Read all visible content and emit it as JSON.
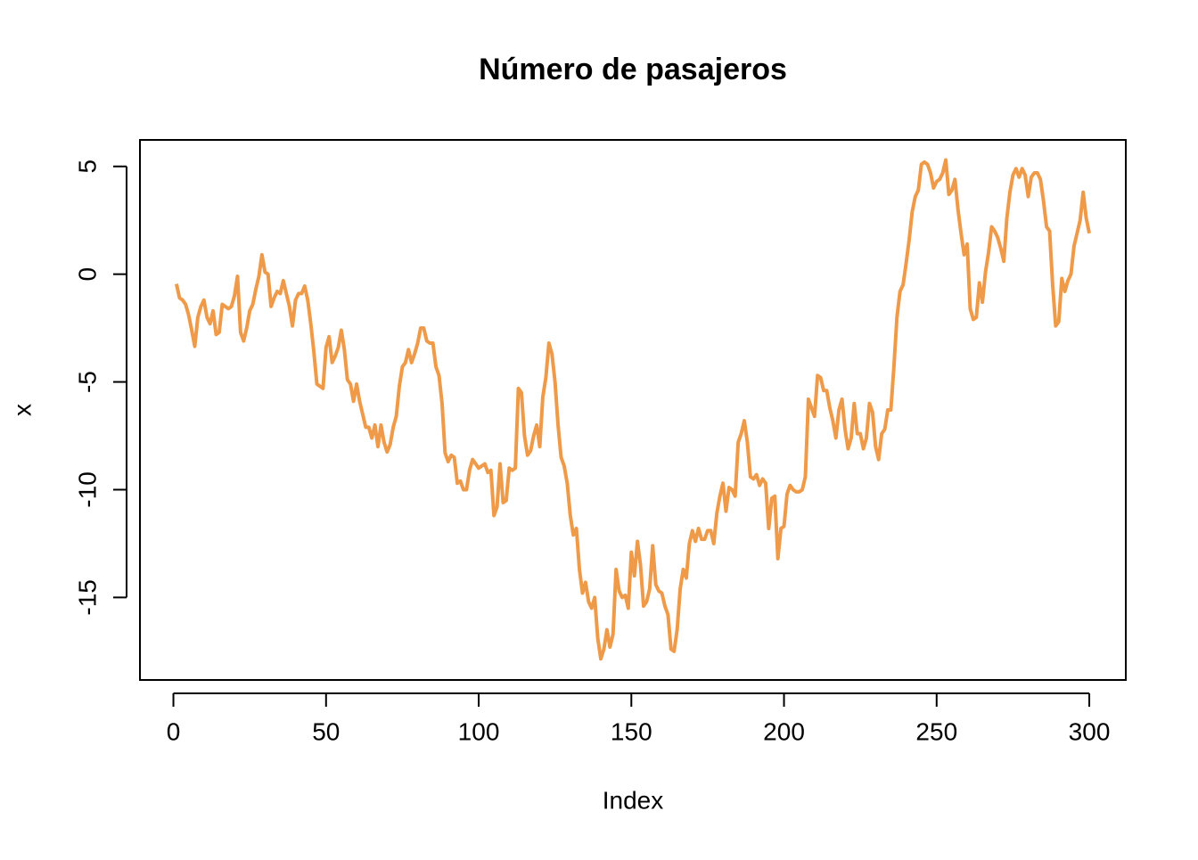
{
  "chart_data": {
    "type": "line",
    "title": "Número de pasajeros",
    "xlabel": "Index",
    "ylabel": "x",
    "color": "#EE9A49",
    "xlim": [
      -10.96,
      311.96
    ],
    "xticks": [
      0,
      50,
      100,
      150,
      200,
      250,
      300
    ],
    "ylim": [
      -18.83,
      6.23
    ],
    "yticks": [
      -15,
      -10,
      -5,
      0,
      5
    ],
    "x": [
      1,
      2,
      3,
      4,
      5,
      6,
      7,
      8,
      9,
      10,
      11,
      12,
      13,
      14,
      15,
      16,
      17,
      18,
      19,
      20,
      21,
      22,
      23,
      24,
      25,
      26,
      27,
      28,
      29,
      30,
      31,
      32,
      33,
      34,
      35,
      36,
      37,
      38,
      39,
      40,
      41,
      42,
      43,
      44,
      45,
      46,
      47,
      48,
      49,
      50,
      51,
      52,
      53,
      54,
      55,
      56,
      57,
      58,
      59,
      60,
      61,
      62,
      63,
      64,
      65,
      66,
      67,
      68,
      69,
      70,
      71,
      72,
      73,
      74,
      75,
      76,
      77,
      78,
      79,
      80,
      81,
      82,
      83,
      84,
      85,
      86,
      87,
      88,
      89,
      90,
      91,
      92,
      93,
      94,
      95,
      96,
      97,
      98,
      99,
      100,
      101,
      102,
      103,
      104,
      105,
      106,
      107,
      108,
      109,
      110,
      111,
      112,
      113,
      114,
      115,
      116,
      117,
      118,
      119,
      120,
      121,
      122,
      123,
      124,
      125,
      126,
      127,
      128,
      129,
      130,
      131,
      132,
      133,
      134,
      135,
      136,
      137,
      138,
      139,
      140,
      141,
      142,
      143,
      144,
      145,
      146,
      147,
      148,
      149,
      150,
      151,
      152,
      153,
      154,
      155,
      156,
      157,
      158,
      159,
      160,
      161,
      162,
      163,
      164,
      165,
      166,
      167,
      168,
      169,
      170,
      171,
      172,
      173,
      174,
      175,
      176,
      177,
      178,
      179,
      180,
      181,
      182,
      183,
      184,
      185,
      186,
      187,
      188,
      189,
      190,
      191,
      192,
      193,
      194,
      195,
      196,
      197,
      198,
      199,
      200,
      201,
      202,
      203,
      204,
      205,
      206,
      207,
      208,
      209,
      210,
      211,
      212,
      213,
      214,
      215,
      216,
      217,
      218,
      219,
      220,
      221,
      222,
      223,
      224,
      225,
      226,
      227,
      228,
      229,
      230,
      231,
      232,
      233,
      234,
      235,
      236,
      237,
      238,
      239,
      240,
      241,
      242,
      243,
      244,
      245,
      246,
      247,
      248,
      249,
      250,
      251,
      252,
      253,
      254,
      255,
      256,
      257,
      258,
      259,
      260,
      261,
      262,
      263,
      264,
      265,
      266,
      267,
      268,
      269,
      270,
      271,
      272,
      273,
      274,
      275,
      276,
      277,
      278,
      279,
      280,
      281,
      282,
      283,
      284,
      285,
      286,
      287,
      288,
      289,
      290,
      291,
      292,
      293,
      294,
      295,
      296,
      297,
      298,
      299,
      300
    ],
    "values": [
      -0.45,
      -1.1,
      -1.2,
      -1.4,
      -1.9,
      -2.6,
      -3.35,
      -2.0,
      -1.5,
      -1.2,
      -2.0,
      -2.3,
      -1.7,
      -2.8,
      -2.7,
      -1.4,
      -1.5,
      -1.6,
      -1.5,
      -1.0,
      -0.1,
      -2.7,
      -3.1,
      -2.5,
      -1.7,
      -1.4,
      -0.7,
      -0.1,
      0.9,
      0.1,
      0.0,
      -1.5,
      -1.1,
      -0.8,
      -0.9,
      -0.3,
      -0.9,
      -1.5,
      -2.4,
      -1.2,
      -0.9,
      -0.9,
      -0.55,
      -1.2,
      -2.3,
      -3.6,
      -5.1,
      -5.2,
      -5.3,
      -3.4,
      -2.9,
      -4.1,
      -3.8,
      -3.4,
      -2.6,
      -3.5,
      -4.9,
      -5.1,
      -5.9,
      -5.1,
      -5.9,
      -6.5,
      -7.1,
      -7.1,
      -7.6,
      -7.0,
      -8.0,
      -7.0,
      -7.8,
      -8.25,
      -7.9,
      -7.1,
      -6.6,
      -5.2,
      -4.3,
      -4.1,
      -3.5,
      -4.1,
      -3.7,
      -3.2,
      -2.5,
      -2.5,
      -3.1,
      -3.2,
      -3.2,
      -4.3,
      -4.7,
      -6.0,
      -8.3,
      -8.7,
      -8.4,
      -8.5,
      -9.7,
      -9.6,
      -10.0,
      -10.0,
      -9.1,
      -8.6,
      -8.8,
      -9.0,
      -8.9,
      -8.8,
      -9.2,
      -9.1,
      -11.2,
      -10.8,
      -8.8,
      -10.6,
      -10.5,
      -9.0,
      -9.1,
      -9.0,
      -5.3,
      -5.5,
      -7.5,
      -8.4,
      -8.2,
      -7.5,
      -7.0,
      -8.0,
      -5.7,
      -4.8,
      -3.2,
      -3.7,
      -5.0,
      -7.0,
      -8.5,
      -8.9,
      -9.7,
      -11.2,
      -12.1,
      -11.8,
      -13.7,
      -14.8,
      -14.3,
      -15.2,
      -15.5,
      -15.0,
      -16.9,
      -17.85,
      -17.4,
      -16.5,
      -17.3,
      -16.7,
      -13.7,
      -14.7,
      -15.0,
      -14.9,
      -15.5,
      -12.9,
      -14.0,
      -12.4,
      -13.5,
      -15.4,
      -15.2,
      -14.6,
      -12.6,
      -14.4,
      -14.7,
      -14.8,
      -15.4,
      -15.8,
      -17.4,
      -17.5,
      -16.5,
      -14.6,
      -13.7,
      -14.1,
      -12.5,
      -11.9,
      -12.4,
      -11.8,
      -12.3,
      -12.3,
      -11.9,
      -11.9,
      -12.5,
      -11.1,
      -10.3,
      -9.7,
      -11.0,
      -9.9,
      -10.0,
      -10.3,
      -7.8,
      -7.4,
      -6.8,
      -7.8,
      -9.4,
      -9.5,
      -9.3,
      -9.8,
      -9.5,
      -9.7,
      -11.8,
      -10.4,
      -10.3,
      -13.2,
      -11.8,
      -11.7,
      -10.2,
      -9.8,
      -10.0,
      -10.1,
      -10.1,
      -10.0,
      -9.4,
      -5.8,
      -6.2,
      -6.6,
      -4.7,
      -4.8,
      -5.4,
      -5.4,
      -6.2,
      -6.8,
      -7.6,
      -6.3,
      -5.8,
      -7.2,
      -8.1,
      -7.6,
      -6.0,
      -7.4,
      -7.4,
      -8.1,
      -7.6,
      -6.0,
      -6.4,
      -8.0,
      -8.6,
      -7.4,
      -7.2,
      -6.3,
      -6.3,
      -4.3,
      -2.0,
      -0.8,
      -0.5,
      0.5,
      1.6,
      2.9,
      3.6,
      3.9,
      5.1,
      5.2,
      5.1,
      4.7,
      4.0,
      4.3,
      4.4,
      4.7,
      5.3,
      3.7,
      3.9,
      4.4,
      3.0,
      1.9,
      0.9,
      1.4,
      -1.6,
      -2.1,
      -2.0,
      -0.4,
      -1.3,
      0.1,
      1.0,
      2.2,
      2.0,
      1.7,
      1.2,
      0.6,
      2.6,
      3.8,
      4.6,
      4.9,
      4.5,
      4.9,
      4.6,
      3.6,
      4.5,
      4.7,
      4.7,
      4.4,
      3.4,
      2.2,
      2.0,
      -0.5,
      -2.4,
      -2.2,
      -0.2,
      -0.8,
      -0.3,
      0.0,
      1.3,
      1.9,
      2.5,
      3.8,
      2.6,
      1.9
    ]
  }
}
